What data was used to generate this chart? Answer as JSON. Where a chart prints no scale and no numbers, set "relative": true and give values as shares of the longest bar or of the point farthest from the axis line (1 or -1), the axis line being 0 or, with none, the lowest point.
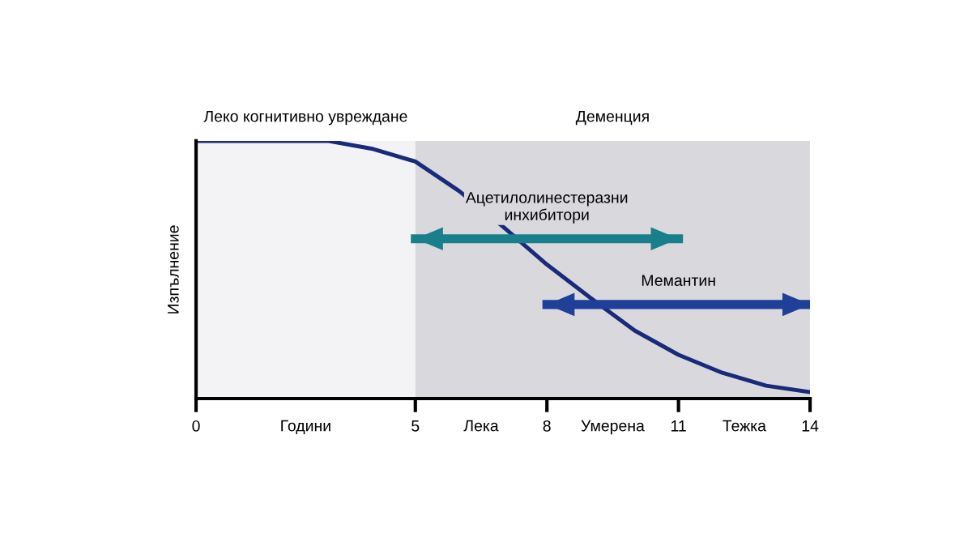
{
  "chart_data": {
    "type": "line",
    "relative": true,
    "xlabel": null,
    "ylabel": "Изпълнение",
    "xlim": [
      0,
      14
    ],
    "xticks": [
      0,
      5,
      8,
      11,
      14,
      {
        "value": 2.5,
        "label": "Години"
      },
      {
        "value": 6.5,
        "label": "Лека"
      },
      {
        "value": 9.5,
        "label": "Умерена"
      },
      {
        "value": 12.5,
        "label": "Тежка"
      }
    ],
    "x": [
      0,
      1,
      2,
      3,
      4,
      5,
      6,
      7,
      8,
      9,
      10,
      11,
      12,
      13,
      14
    ],
    "series": [
      {
        "color": "#1a2a7a",
        "values": [
          1,
          1,
          1,
          1,
          0.97,
          0.92,
          0.805,
          0.667,
          0.52,
          0.39,
          0.264,
          0.17,
          0.1,
          0.05,
          0.025
        ]
      },
      {
        "name": "Ацетилолинестеразни\nинхибитори",
        "color": "#1a7f8a",
        "x": [
          5,
          11
        ],
        "values": [
          0.62,
          0.62
        ],
        "marker": "none",
        "line_style": "solid"
      },
      {
        "name": "Мемантин",
        "color": "#1f3f99",
        "x": [
          8,
          14
        ],
        "values": [
          0.365,
          0.365
        ],
        "marker": "none",
        "line_style": "solid"
      }
    ],
    "bands": [
      {
        "axis": "x",
        "from": 0,
        "to": 5,
        "label": "Леко когнитивно увреждане",
        "color": "#f3f3f6"
      },
      {
        "axis": "x",
        "from": 5,
        "to": 14,
        "label": "Деменция",
        "color": "#d9d9dd"
      }
    ],
    "grid": false,
    "legend": false
  }
}
